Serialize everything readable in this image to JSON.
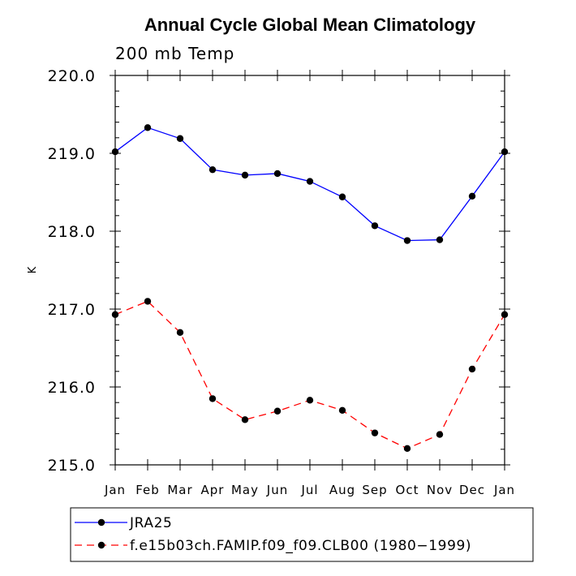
{
  "chart_data": {
    "type": "line",
    "title": "Annual Cycle Global Mean Climatology",
    "subtitle": "200 mb Temp",
    "ylabel": "K",
    "xlabel": "",
    "categories": [
      "Jan",
      "Feb",
      "Mar",
      "Apr",
      "May",
      "Jun",
      "Jul",
      "Aug",
      "Sep",
      "Oct",
      "Nov",
      "Dec",
      "Jan"
    ],
    "ylim": [
      215.0,
      220.0
    ],
    "yticks": [
      215.0,
      216.0,
      217.0,
      218.0,
      219.0,
      220.0
    ],
    "ytick_labels": [
      "215.0",
      "216.0",
      "217.0",
      "218.0",
      "219.0",
      "220.0"
    ],
    "grid": false,
    "legend_position": "bottom",
    "series": [
      {
        "name": "JRA25",
        "color": "#0000ff",
        "line_style": "solid",
        "marker": "filled-circle",
        "values": [
          219.02,
          219.33,
          219.19,
          218.79,
          218.72,
          218.74,
          218.64,
          218.44,
          218.07,
          217.88,
          217.89,
          218.45,
          219.02
        ]
      },
      {
        "name": "f.e15b03ch.FAMIP.f09_f09.CLB00 (1980−1999)",
        "color": "#ff0000",
        "line_style": "dashed",
        "marker": "filled-circle",
        "values": [
          216.93,
          217.1,
          216.7,
          215.85,
          215.58,
          215.69,
          215.83,
          215.7,
          215.41,
          215.21,
          215.39,
          216.23,
          216.93
        ]
      }
    ],
    "marker_color": "#000000"
  }
}
